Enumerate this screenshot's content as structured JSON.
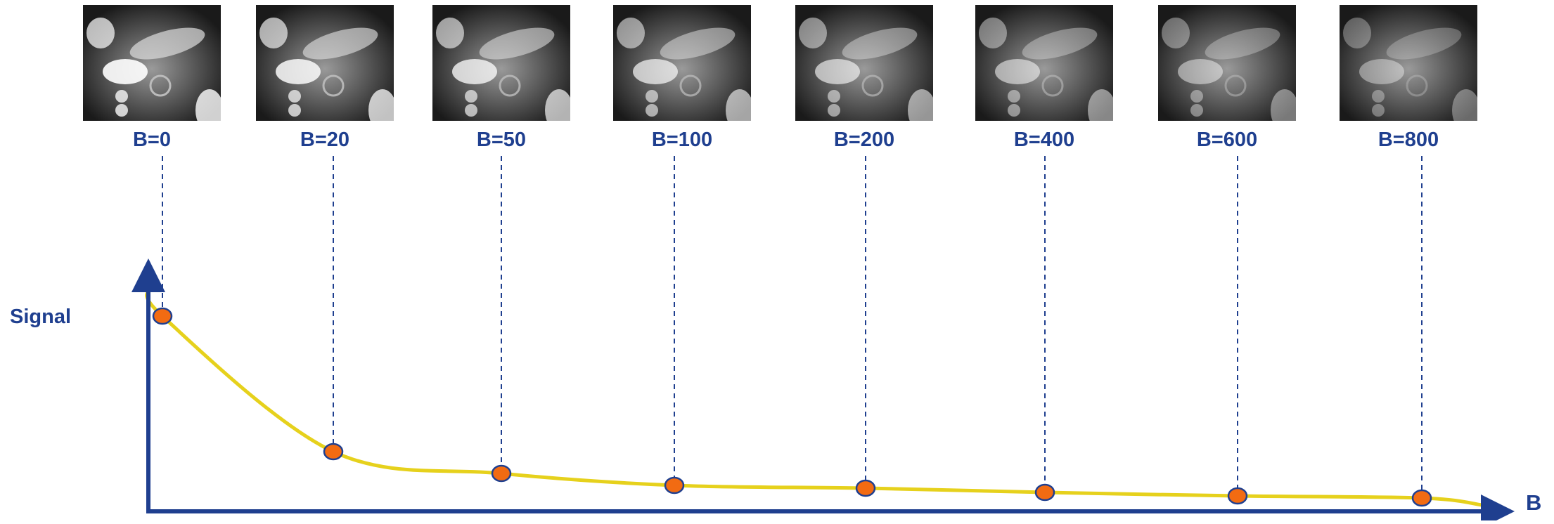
{
  "images": [
    {
      "label": "B=0"
    },
    {
      "label": "B=20"
    },
    {
      "label": "B=50"
    },
    {
      "label": "B=100"
    },
    {
      "label": "B=200"
    },
    {
      "label": "B=400"
    },
    {
      "label": "B=600"
    },
    {
      "label": "B=800"
    }
  ],
  "y_axis_label": "Signal",
  "x_axis_label": "B"
}
